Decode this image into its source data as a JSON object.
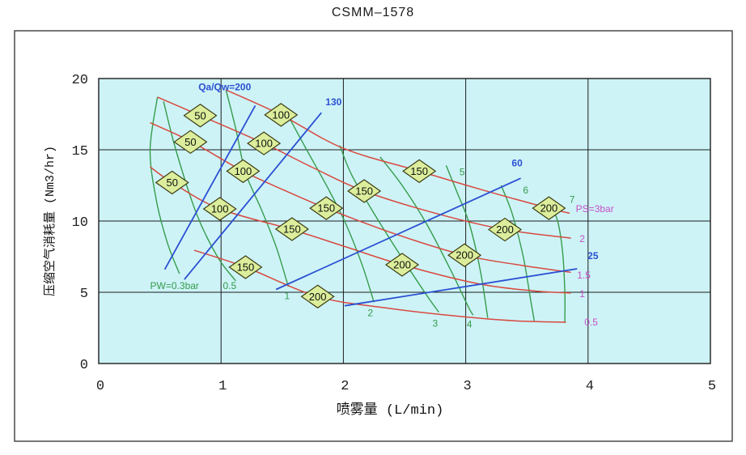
{
  "chart_data": {
    "type": "line",
    "title": "CSMM–1578",
    "xlabel": "喷雾量 (L/min)",
    "ylabel": "压缩空气消耗量 (Nm3/hr)",
    "xlim": [
      0,
      5
    ],
    "ylim": [
      0,
      20
    ],
    "xticks": [
      0,
      1,
      2,
      3,
      4,
      5
    ],
    "yticks": [
      0,
      5,
      10,
      15,
      20
    ],
    "grid": true,
    "legend_position": "none",
    "plot_bg": "#cdf3f7",
    "colors": {
      "red_curve": "#d9493f",
      "green_curve": "#359c4b",
      "blue_line": "#2b50d2",
      "magenta_label": "#c84fc8",
      "diamond_fill": "#dcee9b",
      "diamond_stroke": "#3c3c14",
      "axis": "#1c1c1c",
      "frame": "#4a4a4a",
      "tick_text": "#222222"
    },
    "series": {
      "air_pressure_red": [
        {
          "label": "PS=3bar",
          "label_pos": [
            3.9,
            10.85
          ],
          "points": [
            [
              1.04,
              19.2
            ],
            [
              1.49,
              17.45
            ],
            [
              2.0,
              15.1
            ],
            [
              2.62,
              13.5
            ],
            [
              3.15,
              12.15
            ],
            [
              3.68,
              10.9
            ],
            [
              3.85,
              10.55
            ]
          ]
        },
        {
          "label": "2",
          "label_pos": [
            3.93,
            8.75
          ],
          "points": [
            [
              0.48,
              18.7
            ],
            [
              0.83,
              17.4
            ],
            [
              1.35,
              15.45
            ],
            [
              1.75,
              13.75
            ],
            [
              2.17,
              12.1
            ],
            [
              2.75,
              10.55
            ],
            [
              3.32,
              9.4
            ],
            [
              3.86,
              8.8
            ]
          ]
        },
        {
          "label": "1.5",
          "label_pos": [
            3.91,
            6.2
          ],
          "points": [
            [
              0.42,
              16.9
            ],
            [
              0.75,
              15.6
            ],
            [
              1.18,
              13.5
            ],
            [
              1.52,
              12.15
            ],
            [
              1.86,
              10.9
            ],
            [
              2.42,
              9.1
            ],
            [
              2.99,
              7.6
            ],
            [
              3.45,
              6.9
            ],
            [
              3.86,
              6.4
            ]
          ]
        },
        {
          "label": "1",
          "label_pos": [
            3.93,
            4.9
          ],
          "points": [
            [
              0.42,
              13.8
            ],
            [
              0.6,
              12.7
            ],
            [
              0.99,
              10.85
            ],
            [
              1.58,
              9.4
            ],
            [
              2.05,
              8.1
            ],
            [
              2.48,
              6.93
            ],
            [
              3.1,
              5.6
            ],
            [
              3.55,
              5.1
            ],
            [
              3.86,
              4.95
            ]
          ]
        },
        {
          "label": "0.5",
          "label_pos": [
            3.97,
            2.9
          ],
          "points": [
            [
              0.78,
              7.95
            ],
            [
              1.2,
              6.76
            ],
            [
              1.79,
              4.7
            ],
            [
              2.35,
              3.9
            ],
            [
              2.9,
              3.35
            ],
            [
              3.4,
              3.0
            ],
            [
              3.82,
              2.9
            ]
          ]
        }
      ],
      "water_pressure_green": [
        {
          "label": "PW=0.3bar",
          "label_pos": [
            0.62,
            5.45
          ],
          "points": [
            [
              0.48,
              18.7
            ],
            [
              0.42,
              15.0
            ],
            [
              0.47,
              11.5
            ],
            [
              0.56,
              8.5
            ],
            [
              0.66,
              6.3
            ]
          ]
        },
        {
          "label": "0.5",
          "label_pos": [
            1.07,
            5.45
          ],
          "points": [
            [
              0.53,
              18.4
            ],
            [
              0.63,
              15.0
            ],
            [
              0.8,
              10.5
            ],
            [
              0.97,
              7.5
            ],
            [
              1.12,
              5.8
            ]
          ]
        },
        {
          "label": "1",
          "label_pos": [
            1.54,
            4.75
          ],
          "points": [
            [
              1.04,
              19.2
            ],
            [
              1.12,
              16.5
            ],
            [
              1.2,
              13.4
            ],
            [
              1.33,
              10.8
            ],
            [
              1.45,
              8.2
            ],
            [
              1.55,
              5.4
            ]
          ]
        },
        {
          "label": "2",
          "label_pos": [
            2.22,
            3.55
          ],
          "points": [
            [
              1.56,
              17.2
            ],
            [
              1.7,
              15.0
            ],
            [
              1.88,
              12.2
            ],
            [
              2.02,
              9.8
            ],
            [
              2.15,
              7.0
            ],
            [
              2.25,
              4.3
            ]
          ]
        },
        {
          "label": "3",
          "label_pos": [
            2.75,
            2.8
          ],
          "points": [
            [
              1.97,
              15.3
            ],
            [
              2.07,
              13.2
            ],
            [
              2.26,
              10.4
            ],
            [
              2.48,
              7.4
            ],
            [
              2.68,
              4.8
            ],
            [
              2.78,
              3.6
            ]
          ]
        },
        {
          "label": "4",
          "label_pos": [
            3.03,
            2.75
          ],
          "points": [
            [
              2.3,
              14.5
            ],
            [
              2.48,
              12.5
            ],
            [
              2.68,
              9.8
            ],
            [
              2.88,
              6.5
            ],
            [
              3.02,
              4.0
            ],
            [
              3.06,
              3.4
            ]
          ]
        },
        {
          "label": "5",
          "label_pos": [
            2.97,
            13.45
          ],
          "points": [
            [
              2.84,
              13.9
            ],
            [
              2.93,
              12.0
            ],
            [
              3.03,
              9.8
            ],
            [
              3.12,
              6.5
            ],
            [
              3.18,
              3.2
            ]
          ]
        },
        {
          "label": "6",
          "label_pos": [
            3.49,
            12.15
          ],
          "points": [
            [
              3.29,
              12.5
            ],
            [
              3.38,
              10.5
            ],
            [
              3.47,
              7.5
            ],
            [
              3.53,
              4.5
            ],
            [
              3.56,
              3.0
            ]
          ]
        },
        {
          "label": "7",
          "label_pos": [
            3.87,
            11.5
          ],
          "points": [
            [
              3.65,
              11.2
            ],
            [
              3.74,
              10.3
            ],
            [
              3.79,
              8.0
            ],
            [
              3.81,
              5.0
            ],
            [
              3.81,
              2.9
            ]
          ]
        }
      ],
      "ratio_blue": [
        {
          "label": "Qa/Qw=200",
          "label_pos": [
            1.03,
            19.4
          ],
          "points": [
            [
              0.54,
              6.6
            ],
            [
              1.28,
              18.1
            ]
          ]
        },
        {
          "label": "130",
          "label_pos": [
            1.92,
            18.35
          ],
          "points": [
            [
              0.7,
              5.9
            ],
            [
              1.82,
              17.6
            ]
          ]
        },
        {
          "label": "60",
          "label_pos": [
            3.42,
            14.05
          ],
          "points": [
            [
              1.45,
              5.2
            ],
            [
              3.45,
              13.0
            ]
          ]
        },
        {
          "label": "25",
          "label_pos": [
            4.04,
            7.55
          ],
          "points": [
            [
              2.01,
              4.05
            ],
            [
              3.91,
              6.65
            ]
          ]
        }
      ]
    },
    "markers_micron": [
      {
        "value": "50",
        "x": 0.83,
        "y": 17.4
      },
      {
        "value": "50",
        "x": 0.75,
        "y": 15.55
      },
      {
        "value": "50",
        "x": 0.6,
        "y": 12.7
      },
      {
        "value": "100",
        "x": 1.49,
        "y": 17.45
      },
      {
        "value": "100",
        "x": 1.35,
        "y": 15.45
      },
      {
        "value": "100",
        "x": 1.18,
        "y": 13.5
      },
      {
        "value": "100",
        "x": 0.99,
        "y": 10.85
      },
      {
        "value": "150",
        "x": 2.62,
        "y": 13.5
      },
      {
        "value": "150",
        "x": 2.17,
        "y": 12.1
      },
      {
        "value": "150",
        "x": 1.86,
        "y": 10.9
      },
      {
        "value": "150",
        "x": 1.58,
        "y": 9.43
      },
      {
        "value": "150",
        "x": 1.2,
        "y": 6.76
      },
      {
        "value": "200",
        "x": 3.68,
        "y": 10.9
      },
      {
        "value": "200",
        "x": 3.32,
        "y": 9.4
      },
      {
        "value": "200",
        "x": 2.99,
        "y": 7.6
      },
      {
        "value": "200",
        "x": 2.48,
        "y": 6.93
      },
      {
        "value": "200",
        "x": 1.79,
        "y": 4.7
      }
    ]
  }
}
